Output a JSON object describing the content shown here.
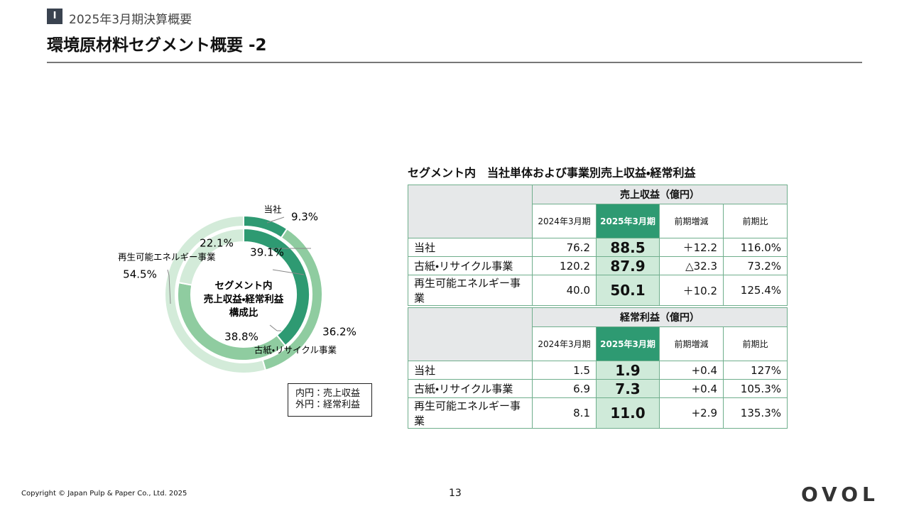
{
  "header": {
    "section": "I",
    "subtitle": "2025年3月期決算概要",
    "title": "環境原材料セグメント概要 -2"
  },
  "donut": {
    "type": "pie",
    "center_label": [
      "セグメント内",
      "売上収益・経常利益",
      "構成比"
    ],
    "categories": [
      "当社",
      "古紙・リサイクル事業",
      "再生可能エネルギー事業"
    ],
    "colors": [
      "#2e9a72",
      "#8fcca0",
      "#d3ebd9"
    ],
    "inner": {
      "values": [
        39.1,
        38.8,
        22.1
      ],
      "value_labels": [
        "39.1%",
        "38.8%",
        "22.1%"
      ]
    },
    "outer": {
      "values": [
        9.3,
        36.2,
        54.5
      ],
      "value_labels": [
        "9.3%",
        "36.2%",
        "54.5%"
      ]
    },
    "legend": [
      "内円：売上収益",
      "外円：経常利益"
    ]
  },
  "tables": {
    "title": "セグメント内　当社単体および事業別売上収益・経常利益",
    "items": [
      {
        "header": "売上収益（億円）",
        "columns": [
          "2024年3月期",
          "2025年3月期",
          "前期増減",
          "前期比"
        ],
        "rows": [
          [
            "当社",
            "76.2",
            "88.5",
            "＋12.2",
            "116.0%"
          ],
          [
            "古紙・リサイクル事業",
            "120.2",
            "87.9",
            "△32.3",
            "73.2%"
          ],
          [
            "再生可能エネルギー事業",
            "40.0",
            "50.1",
            "＋10.2",
            "125.4%"
          ]
        ]
      },
      {
        "header": "経常利益（億円）",
        "columns": [
          "2024年3月期",
          "2025年3月期",
          "前期増減",
          "前期比"
        ],
        "rows": [
          [
            "当社",
            "1.5",
            "1.9",
            "+0.4",
            "127%"
          ],
          [
            "古紙・リサイクル事業",
            "6.9",
            "7.3",
            "+0.4",
            "105.3%"
          ],
          [
            "再生可能エネルギー事業",
            "8.1",
            "11.0",
            "+2.9",
            "135.3%"
          ]
        ]
      }
    ]
  },
  "footer": {
    "copyright": "Copyright © Japan Pulp & Paper Co., Ltd. 2025",
    "page": "13",
    "logo": "OVOL"
  }
}
